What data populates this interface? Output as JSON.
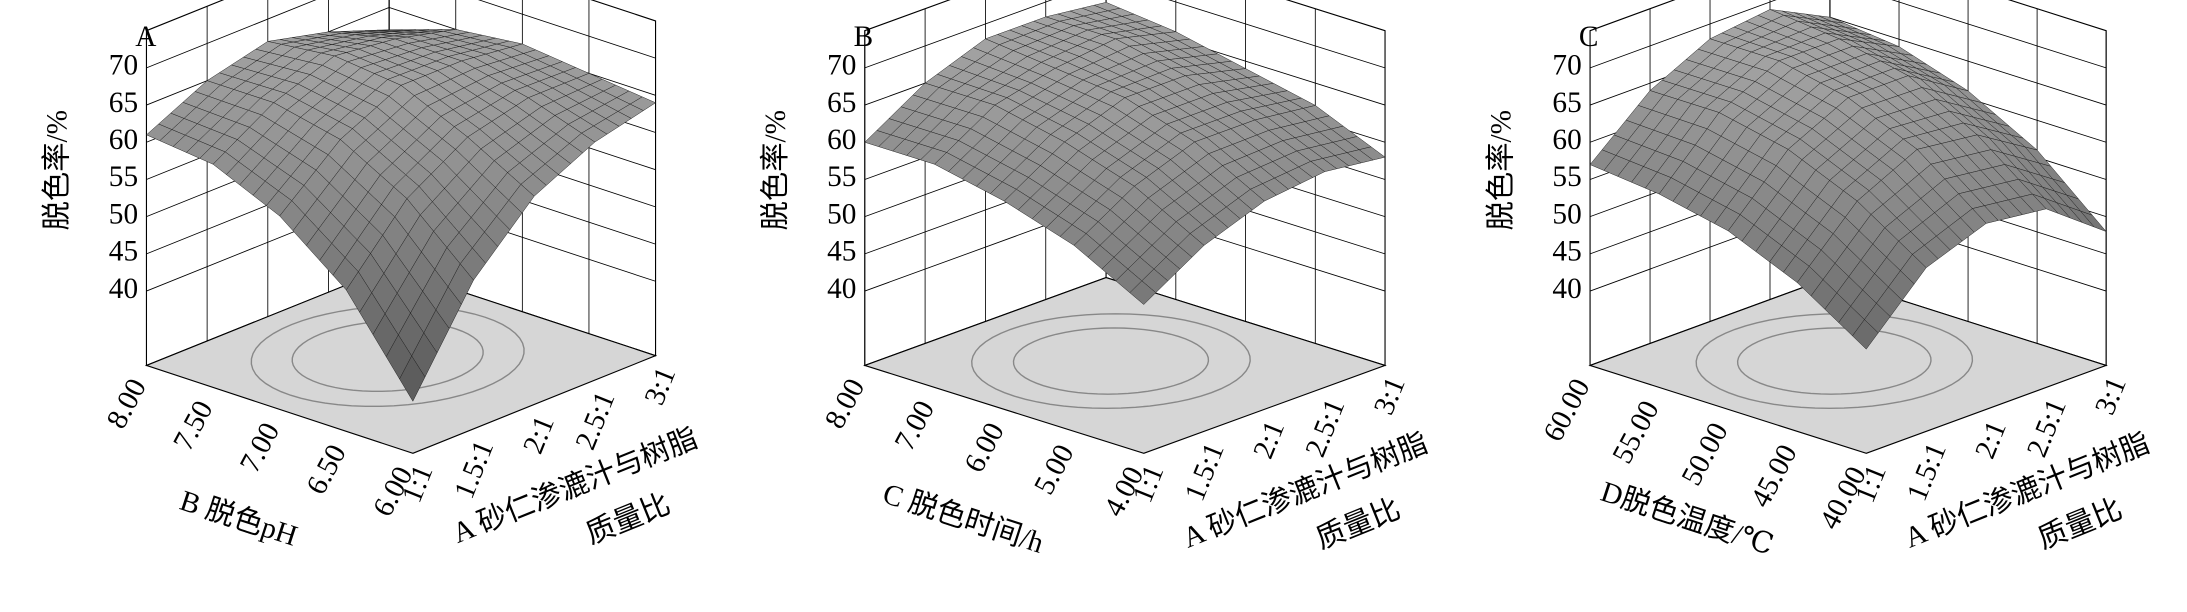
{
  "chart_data": [
    {
      "type": "surface3d",
      "panel": "A",
      "zlabel": "脱色率/%",
      "ylabel": "B 脱色pH",
      "xlabel": [
        "A 砂仁渗漉汁与树脂",
        "质量比"
      ],
      "x": [
        1,
        1.5,
        2,
        2.5,
        3
      ],
      "y": [
        6,
        6.5,
        7,
        7.5,
        8
      ],
      "xlim": [
        1,
        3
      ],
      "ylim": [
        6,
        8
      ],
      "zlim": [
        30,
        75
      ],
      "xticks": [
        {
          "value": 1,
          "label": "1:1"
        },
        {
          "value": 1.5,
          "label": "1.5:1"
        },
        {
          "value": 2,
          "label": "2:1"
        },
        {
          "value": 2.5,
          "label": "2.5:1"
        },
        {
          "value": 3,
          "label": "3:1"
        }
      ],
      "yticks": [
        {
          "value": 6,
          "label": "6.00"
        },
        {
          "value": 6.5,
          "label": "6.50"
        },
        {
          "value": 7,
          "label": "7.00"
        },
        {
          "value": 7.5,
          "label": "7.50"
        },
        {
          "value": 8,
          "label": "8.00"
        }
      ],
      "zticks": [
        40,
        45,
        50,
        55,
        60,
        65,
        70
      ],
      "values": [
        [
          37,
          50,
          58,
          62,
          64
        ],
        [
          49,
          58,
          63,
          65,
          65
        ],
        [
          56,
          63,
          67,
          67,
          66
        ],
        [
          60,
          65,
          68,
          67,
          65
        ],
        [
          61,
          65,
          67,
          65,
          62
        ]
      ]
    },
    {
      "type": "surface3d",
      "panel": "B",
      "zlabel": "脱色率/%",
      "ylabel": "C 脱色时间/h",
      "xlabel": [
        "A 砂仁渗漉汁与树脂",
        "质量比"
      ],
      "x": [
        1,
        1.5,
        2,
        2.5,
        3
      ],
      "y": [
        4,
        5,
        6,
        7,
        8
      ],
      "xlim": [
        1,
        3
      ],
      "ylim": [
        4,
        8
      ],
      "zlim": [
        30,
        75
      ],
      "xticks": [
        {
          "value": 1,
          "label": "1:1"
        },
        {
          "value": 1.5,
          "label": "1.5:1"
        },
        {
          "value": 2,
          "label": "2:1"
        },
        {
          "value": 2.5,
          "label": "2.5:1"
        },
        {
          "value": 3,
          "label": "3:1"
        }
      ],
      "yticks": [
        {
          "value": 4,
          "label": "4.00"
        },
        {
          "value": 5,
          "label": "5.00"
        },
        {
          "value": 6,
          "label": "6.00"
        },
        {
          "value": 7,
          "label": "7.00"
        },
        {
          "value": 8,
          "label": "8.00"
        }
      ],
      "zticks": [
        40,
        45,
        50,
        55,
        60,
        65,
        70
      ],
      "values": [
        [
          50,
          55,
          58,
          59,
          58
        ],
        [
          55,
          60,
          63,
          63,
          62
        ],
        [
          58,
          63,
          66,
          66,
          64
        ],
        [
          60,
          65,
          67,
          68,
          66
        ],
        [
          60,
          65,
          68,
          68,
          67
        ]
      ]
    },
    {
      "type": "surface3d",
      "panel": "C",
      "zlabel": "脱色率/%",
      "ylabel": "D脱色温度/℃",
      "xlabel": [
        "A 砂仁渗漉汁与树脂",
        "质量比"
      ],
      "x": [
        1,
        1.5,
        2,
        2.5,
        3
      ],
      "y": [
        40,
        45,
        50,
        55,
        60
      ],
      "xlim": [
        1,
        3
      ],
      "ylim": [
        40,
        60
      ],
      "zlim": [
        30,
        75
      ],
      "xticks": [
        {
          "value": 1,
          "label": "1:1"
        },
        {
          "value": 1.5,
          "label": "1.5:1"
        },
        {
          "value": 2,
          "label": "2:1"
        },
        {
          "value": 2.5,
          "label": "2.5:1"
        },
        {
          "value": 3,
          "label": "3:1"
        }
      ],
      "yticks": [
        {
          "value": 40,
          "label": "40.00"
        },
        {
          "value": 45,
          "label": "45.00"
        },
        {
          "value": 50,
          "label": "50.00"
        },
        {
          "value": 55,
          "label": "55.00"
        },
        {
          "value": 60,
          "label": "60.00"
        }
      ],
      "zticks": [
        40,
        45,
        50,
        55,
        60,
        65,
        70
      ],
      "values": [
        [
          44,
          52,
          55,
          54,
          48
        ],
        [
          50,
          58,
          62,
          61,
          56
        ],
        [
          54,
          62,
          66,
          66,
          61
        ],
        [
          56,
          64,
          68,
          68,
          64
        ],
        [
          57,
          64,
          68,
          69,
          65
        ]
      ]
    }
  ]
}
